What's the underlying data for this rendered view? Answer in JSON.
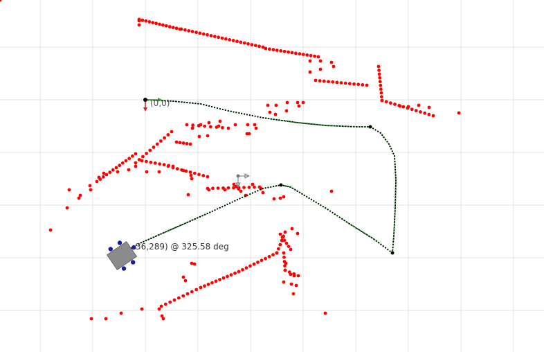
{
  "map": {
    "origin_label": "(0,0)",
    "robot_pose_label": "36,289) @ 325.58 deg",
    "colors": {
      "grid": "#e3e3e3",
      "obstacle": "#ff0000",
      "path": "#007a00",
      "path_node": "#000000",
      "robot_body": "#8c8c8c",
      "robot_wheel": "#1a1aa0",
      "axis_x": "#2a9a2a",
      "axis_y": "#cc2222",
      "text": "#333333"
    },
    "icons": {
      "origin": "origin-axes-icon",
      "target": "target-marker-icon",
      "robot": "robot-icon"
    }
  }
}
